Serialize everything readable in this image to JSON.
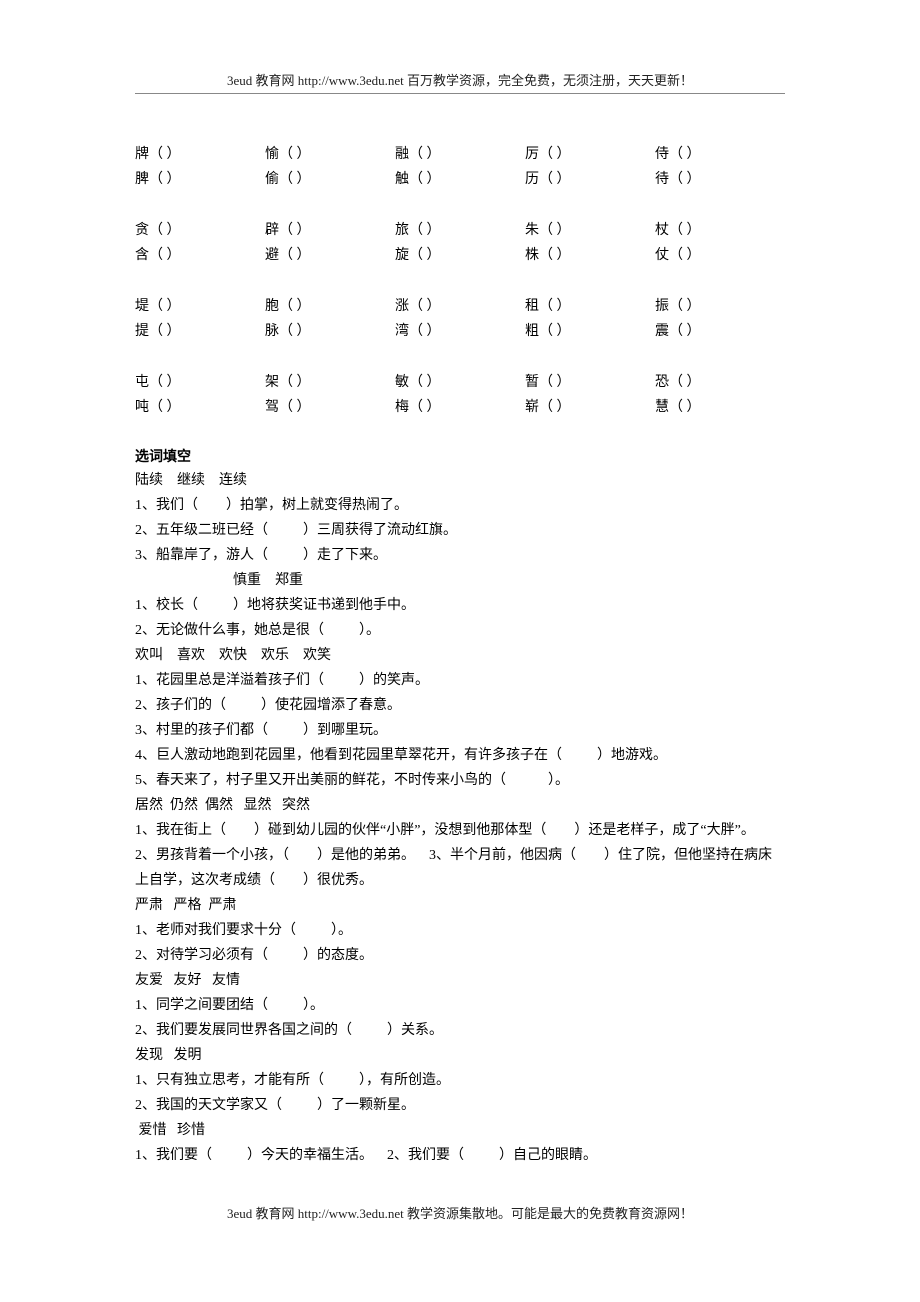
{
  "header": "3eud 教育网 http://www.3edu.net   百万教学资源，完全免费，无须注册，天天更新！",
  "footer": "3eud 教育网 http://www.3edu.net   教学资源集散地。可能是最大的免费教育资源网！",
  "char_groups": [
    [
      [
        "牌",
        "愉",
        "融",
        "厉",
        "侍"
      ],
      [
        "脾",
        "偷",
        "触",
        "历",
        "待"
      ]
    ],
    [
      [
        "贪",
        "辟",
        "旅",
        "朱",
        "杖"
      ],
      [
        "含",
        "避",
        "旋",
        "株",
        "仗"
      ]
    ],
    [
      [
        "堤",
        "胞",
        "涨",
        "租",
        "振"
      ],
      [
        "提",
        "脉",
        "湾",
        "粗",
        "震"
      ]
    ],
    [
      [
        "屯",
        "架",
        "敏",
        "暂",
        "恐"
      ],
      [
        "吨",
        "驾",
        "梅",
        "崭",
        "慧"
      ]
    ]
  ],
  "section_title": "选词填空",
  "exercises": [
    {
      "type": "words",
      "text": "陆续    继续    连续"
    },
    {
      "type": "item",
      "text": "1、我们（        ）拍掌，树上就变得热闹了。"
    },
    {
      "type": "item",
      "text": "2、五年级二班已经（          ）三周获得了流动红旗。"
    },
    {
      "type": "item",
      "text": "3、船靠岸了，游人（          ）走了下来。"
    },
    {
      "type": "words_indent",
      "text": "慎重    郑重"
    },
    {
      "type": "item",
      "text": "1、校长（          ）地将获奖证书递到他手中。"
    },
    {
      "type": "item",
      "text": "2、无论做什么事，她总是很（          ）。"
    },
    {
      "type": "words",
      "text": "欢叫    喜欢    欢快    欢乐    欢笑"
    },
    {
      "type": "item",
      "text": "1、花园里总是洋溢着孩子们（          ）的笑声。"
    },
    {
      "type": "item",
      "text": "2、孩子们的（          ）使花园增添了春意。"
    },
    {
      "type": "item",
      "text": "3、村里的孩子们都（          ）到哪里玩。"
    },
    {
      "type": "item",
      "text": "4、巨人激动地跑到花园里，他看到花园里草翠花开，有许多孩子在（          ）地游戏。"
    },
    {
      "type": "item",
      "text": "5、春天来了，村子里又开出美丽的鲜花，不时传来小鸟的（            ）。"
    },
    {
      "type": "words",
      "text": "居然  仍然  偶然   显然   突然"
    },
    {
      "type": "item",
      "text": "1、我在街上（        ）碰到幼儿园的伙伴“小胖”，没想到他那体型（        ）还是老样子，成了“大胖”。    2、男孩背着一个小孩，（        ）是他的弟弟。    3、半个月前，他因病（        ）住了院，但他坚持在病床上自学，这次考成绩（        ）很优秀。"
    },
    {
      "type": "words",
      "text": "严肃   严格  严肃"
    },
    {
      "type": "item",
      "text": "1、老师对我们要求十分（          ）。"
    },
    {
      "type": "item",
      "text": "2、对待学习必须有（          ）的态度。"
    },
    {
      "type": "words",
      "text": "友爱   友好   友情"
    },
    {
      "type": "item",
      "text": "1、同学之间要团结（          ）。"
    },
    {
      "type": "item",
      "text": "2、我们要发展同世界各国之间的（          ）关系。"
    },
    {
      "type": "words",
      "text": "发现   发明"
    },
    {
      "type": "item",
      "text": "1、只有独立思考，才能有所（          ），有所创造。"
    },
    {
      "type": "item",
      "text": "2、我国的天文学家又（          ）了一颗新星。"
    },
    {
      "type": "words",
      "text": " 爱惜   珍惜"
    },
    {
      "type": "item",
      "text": "1、我们要（          ）今天的幸福生活。    2、我们要（          ）自己的眼睛。"
    }
  ]
}
